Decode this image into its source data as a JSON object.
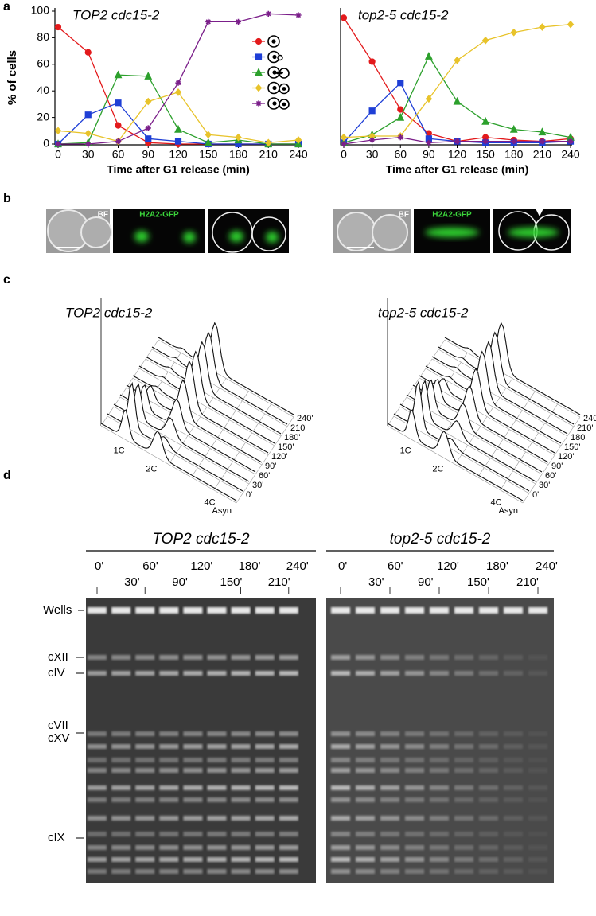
{
  "panel_labels": [
    "a",
    "b",
    "c",
    "d"
  ],
  "chart_data": [
    {
      "type": "line",
      "title": "TOP2 cdc15-2",
      "xlabel": "Time after G1 release (min)",
      "ylabel": "% of cells",
      "x": [
        0,
        30,
        60,
        90,
        120,
        150,
        180,
        210,
        240
      ],
      "xlim": [
        0,
        240
      ],
      "xticks": [
        0,
        30,
        60,
        90,
        120,
        150,
        180,
        210,
        240
      ],
      "ylim": [
        0,
        100
      ],
      "yticks": [
        0,
        20,
        40,
        60,
        80,
        100
      ],
      "series": [
        {
          "color": "#e31a1c",
          "marker": "circle",
          "values": [
            88,
            69,
            14,
            1,
            0,
            0,
            0,
            0,
            0
          ]
        },
        {
          "color": "#1f3fd6",
          "marker": "square",
          "values": [
            0,
            22,
            31,
            4,
            2,
            0,
            0,
            0,
            0
          ]
        },
        {
          "color": "#2ca02c",
          "marker": "triangle",
          "values": [
            0,
            1,
            52,
            51,
            11,
            1,
            3,
            0,
            0
          ]
        },
        {
          "color": "#e8c32a",
          "marker": "diamond",
          "values": [
            10,
            8,
            2,
            32,
            39,
            7,
            5,
            1,
            3
          ]
        },
        {
          "color": "#7b1f8a",
          "marker": "star",
          "values": [
            0,
            0,
            2,
            12,
            46,
            92,
            92,
            98,
            97
          ]
        }
      ]
    },
    {
      "type": "line",
      "title": "top2-5 cdc15-2",
      "xlabel": "Time after G1 release (min)",
      "x": [
        0,
        30,
        60,
        90,
        120,
        150,
        180,
        210,
        240
      ],
      "xlim": [
        0,
        240
      ],
      "xticks": [
        0,
        30,
        60,
        90,
        120,
        150,
        180,
        210,
        240
      ],
      "ylim": [
        0,
        100
      ],
      "series": [
        {
          "color": "#e31a1c",
          "marker": "circle",
          "values": [
            95,
            62,
            26,
            8,
            2,
            5,
            3,
            2,
            4
          ]
        },
        {
          "color": "#1f3fd6",
          "marker": "square",
          "values": [
            1,
            25,
            46,
            4,
            2,
            1,
            1,
            1,
            2
          ]
        },
        {
          "color": "#2ca02c",
          "marker": "triangle",
          "values": [
            1,
            7,
            20,
            66,
            32,
            17,
            11,
            9,
            5
          ]
        },
        {
          "color": "#e8c32a",
          "marker": "diamond",
          "values": [
            5,
            6,
            6,
            34,
            63,
            78,
            84,
            88,
            90
          ]
        },
        {
          "color": "#7b1f8a",
          "marker": "star",
          "values": [
            0,
            3,
            5,
            1,
            2,
            2,
            2,
            2,
            2
          ]
        }
      ]
    }
  ],
  "panel_b": [
    {
      "labels": [
        "BF",
        "H2A2-GFP"
      ]
    },
    {
      "labels": [
        "BF",
        "H2A2-GFP"
      ]
    }
  ],
  "panel_c": [
    {
      "title": "TOP2 cdc15-2",
      "dna_labels": [
        "1C",
        "2C",
        "4C"
      ],
      "samples": [
        "Asyn",
        "0'",
        "30'",
        "60'",
        "90'",
        "120'",
        "150'",
        "180'",
        "210'",
        "240'"
      ]
    },
    {
      "title": "top2-5 cdc15-2",
      "dna_labels": [
        "1C",
        "2C",
        "4C"
      ],
      "samples": [
        "Asyn",
        "0'",
        "30'",
        "60'",
        "90'",
        "120'",
        "150'",
        "180'",
        "210'",
        "240'"
      ]
    }
  ],
  "panel_d": {
    "gels": [
      {
        "title": "TOP2 cdc15-2",
        "times": [
          "0'",
          "30'",
          "60'",
          "90'",
          "120'",
          "150'",
          "180'",
          "210'",
          "240'"
        ]
      },
      {
        "title": "top2-5 cdc15-2",
        "times": [
          "0'",
          "30'",
          "60'",
          "90'",
          "120'",
          "150'",
          "180'",
          "210'",
          "240'"
        ]
      }
    ],
    "bands": [
      "Wells",
      "cXII",
      "cIV",
      "cVII",
      "cXV",
      "cIX"
    ]
  }
}
